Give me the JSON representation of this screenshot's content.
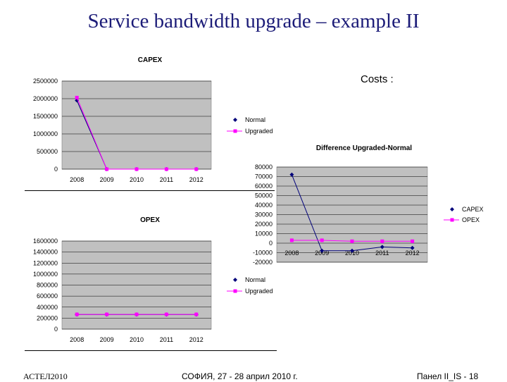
{
  "slide": {
    "title": "Service bandwidth upgrade – example II",
    "costs_label": "Costs :",
    "footer_left": "АСТЕЛ2010",
    "footer_center": "СОФИЯ, 27 - 28 април 2010 г.",
    "footer_right": "Панел II_IS -  18"
  },
  "colors": {
    "plot_bg": "#c0c0c0",
    "normal": "#00007a",
    "upgraded": "#ff00ff",
    "grid": "#000000",
    "title": "#1c1c78"
  },
  "chart_data": [
    {
      "type": "line",
      "title": "CAPEX",
      "x": [
        "2008",
        "2009",
        "2010",
        "2011",
        "2012"
      ],
      "ylim": [
        0,
        2500000
      ],
      "yticks": [
        "0",
        "500000",
        "1000000",
        "1500000",
        "2000000",
        "2500000"
      ],
      "grid": true,
      "legend": "right",
      "series": [
        {
          "name": "Normal",
          "values": [
            1950000,
            0,
            0,
            0,
            0
          ]
        },
        {
          "name": "Upgraded",
          "values": [
            2030000,
            0,
            0,
            0,
            0
          ]
        }
      ]
    },
    {
      "type": "line",
      "title": "OPEX",
      "x": [
        "2008",
        "2009",
        "2010",
        "2011",
        "2012"
      ],
      "ylim": [
        0,
        1600000
      ],
      "yticks": [
        "0",
        "200000",
        "400000",
        "600000",
        "800000",
        "1000000",
        "1200000",
        "1400000",
        "1600000"
      ],
      "grid": true,
      "legend": "right",
      "series": [
        {
          "name": "Normal",
          "values": [
            265000,
            265000,
            265000,
            265000,
            265000
          ]
        },
        {
          "name": "Upgraded",
          "values": [
            268000,
            268000,
            268000,
            268000,
            268000
          ]
        }
      ]
    },
    {
      "type": "line",
      "title": "Difference Upgraded-Normal",
      "x": [
        "2008",
        "2009",
        "2010",
        "2011",
        "2012"
      ],
      "ylim": [
        -20000,
        80000
      ],
      "yticks": [
        "-20000",
        "-10000",
        "0",
        "10000",
        "20000",
        "30000",
        "40000",
        "50000",
        "60000",
        "70000",
        "80000"
      ],
      "grid": true,
      "legend": "right",
      "series": [
        {
          "name": "CAPEX",
          "values": [
            72000,
            -8000,
            -8000,
            -4000,
            -5000
          ]
        },
        {
          "name": "OPEX",
          "values": [
            3000,
            3000,
            2000,
            2000,
            2000
          ]
        }
      ]
    }
  ]
}
